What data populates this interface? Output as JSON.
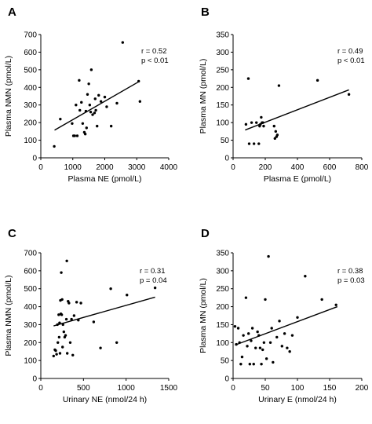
{
  "chart_data": [
    {
      "type": "scatter",
      "panel": "A",
      "xlabel": "Plasma NE (pmol/L)",
      "ylabel": "Plasma NMN (pmol/L)",
      "xlim": [
        0,
        4000
      ],
      "ylim": [
        0,
        700
      ],
      "xticks": [
        0,
        1000,
        2000,
        3000,
        4000
      ],
      "yticks": [
        0,
        100,
        200,
        300,
        400,
        500,
        600,
        700
      ],
      "stats": [
        "r  =  0.52",
        "p  < 0.01"
      ],
      "fit": {
        "x": [
          430,
          3090
        ],
        "y": [
          157,
          435
        ]
      },
      "points": {
        "x": [
          420,
          610,
          980,
          1020,
          1060,
          1100,
          1140,
          1200,
          1220,
          1270,
          1310,
          1360,
          1390,
          1410,
          1430,
          1460,
          1500,
          1530,
          1560,
          1580,
          1620,
          1680,
          1700,
          1720,
          1760,
          1810,
          1880,
          2000,
          2060,
          2200,
          2380,
          2560,
          3060,
          3100
        ],
        "y": [
          65,
          220,
          195,
          125,
          125,
          300,
          125,
          440,
          270,
          315,
          195,
          145,
          135,
          265,
          170,
          360,
          420,
          300,
          260,
          500,
          245,
          255,
          335,
          270,
          180,
          355,
          320,
          345,
          290,
          180,
          310,
          655,
          435,
          320
        ]
      }
    },
    {
      "type": "scatter",
      "panel": "B",
      "xlabel": "Plasma E (pmol/L)",
      "ylabel": "Plasma MN (pmol/L)",
      "xlim": [
        0,
        800
      ],
      "ylim": [
        0,
        350
      ],
      "xticks": [
        0,
        200,
        400,
        600,
        800
      ],
      "yticks": [
        0,
        50,
        100,
        150,
        200,
        250,
        300,
        350
      ],
      "stats": [
        "r  =  0.49",
        "p  < 0.01"
      ],
      "fit": {
        "x": [
          75,
          720
        ],
        "y": [
          79,
          193
        ]
      },
      "points": {
        "x": [
          80,
          95,
          100,
          115,
          130,
          145,
          160,
          165,
          170,
          175,
          180,
          185,
          190,
          255,
          260,
          265,
          270,
          275,
          285,
          525,
          720
        ],
        "y": [
          95,
          225,
          40,
          100,
          40,
          100,
          40,
          90,
          95,
          115,
          100,
          100,
          90,
          90,
          55,
          75,
          60,
          65,
          205,
          220,
          180
        ]
      }
    },
    {
      "type": "scatter",
      "panel": "C",
      "xlabel": "Urinary NE (nmol/24 h)",
      "ylabel": "Plasma NMN (pmol/L)",
      "xlim": [
        0,
        1500
      ],
      "ylim": [
        0,
        700
      ],
      "xticks": [
        0,
        500,
        1000,
        1500
      ],
      "yticks": [
        0,
        100,
        200,
        300,
        400,
        500,
        600,
        700
      ],
      "stats": [
        "r  =  0.31",
        "p  =  0.04"
      ],
      "fit": {
        "x": [
          150,
          1340
        ],
        "y": [
          293,
          453
        ]
      },
      "points": {
        "x": [
          150,
          165,
          175,
          185,
          195,
          200,
          210,
          215,
          220,
          225,
          230,
          235,
          240,
          245,
          250,
          255,
          260,
          270,
          280,
          290,
          300,
          305,
          310,
          320,
          330,
          345,
          360,
          375,
          390,
          420,
          440,
          470,
          620,
          700,
          820,
          890,
          1010,
          1340
        ],
        "y": [
          125,
          160,
          155,
          135,
          300,
          200,
          355,
          230,
          310,
          140,
          435,
          360,
          590,
          355,
          440,
          175,
          300,
          260,
          230,
          240,
          330,
          655,
          140,
          430,
          420,
          200,
          330,
          130,
          350,
          425,
          325,
          420,
          315,
          170,
          500,
          200,
          465,
          505
        ]
      }
    },
    {
      "type": "scatter",
      "panel": "D",
      "xlabel": "Urinary E (nmol/24 h)",
      "ylabel": "Plasma MN (pmol/L)",
      "xlim": [
        0,
        200
      ],
      "ylim": [
        0,
        350
      ],
      "xticks": [
        0,
        50,
        100,
        150,
        200
      ],
      "yticks": [
        0,
        50,
        100,
        150,
        200,
        250,
        300,
        350
      ],
      "stats": [
        "r  =  0.38",
        "p  =  0.03"
      ],
      "fit": {
        "x": [
          3,
          162
        ],
        "y": [
          93,
          200
        ]
      },
      "points": {
        "x": [
          3,
          5,
          8,
          10,
          12,
          14,
          16,
          20,
          22,
          24,
          26,
          28,
          30,
          32,
          35,
          38,
          40,
          42,
          44,
          46,
          48,
          50,
          52,
          55,
          58,
          60,
          62,
          68,
          72,
          76,
          80,
          84,
          88,
          92,
          100,
          112,
          138,
          160
        ],
        "y": [
          145,
          95,
          140,
          100,
          40,
          60,
          120,
          225,
          90,
          125,
          40,
          105,
          140,
          40,
          85,
          130,
          120,
          85,
          40,
          80,
          100,
          220,
          55,
          340,
          100,
          140,
          45,
          115,
          160,
          90,
          125,
          85,
          75,
          120,
          170,
          285,
          220,
          205
        ]
      }
    }
  ]
}
